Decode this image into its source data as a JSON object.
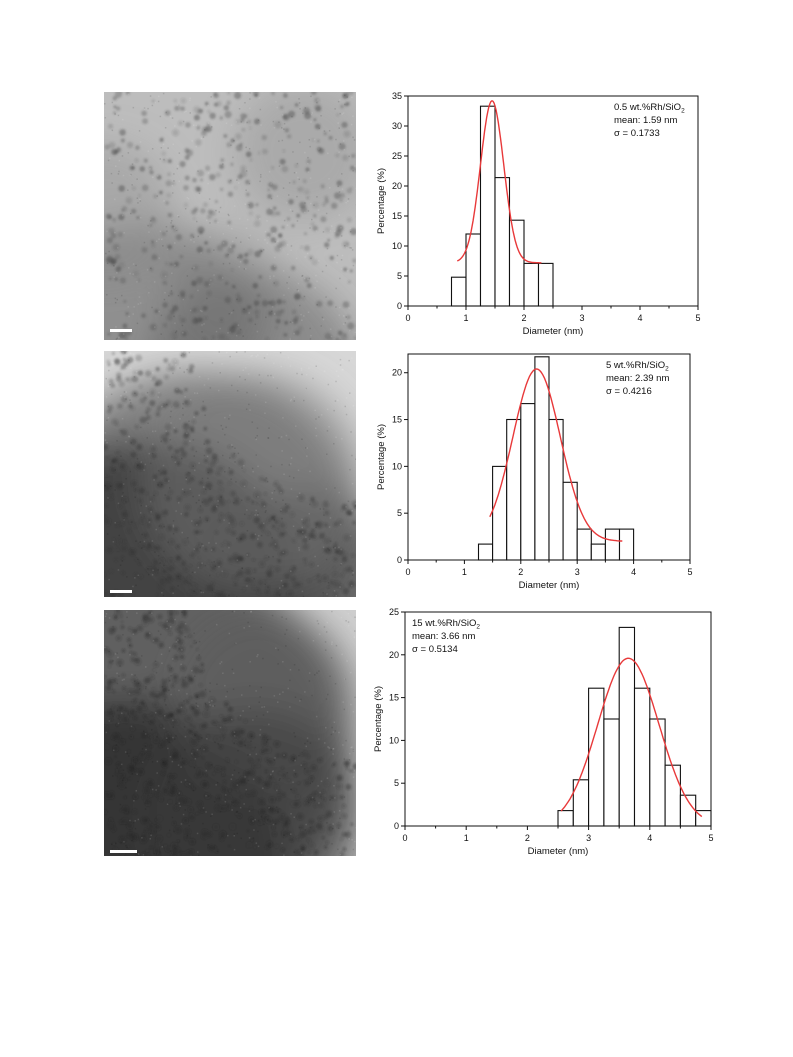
{
  "colors": {
    "fit": "#e8393a",
    "bar_edge": "#111111",
    "tem_light": "#c9c9c9",
    "tem_dark": "#3a3a3a"
  },
  "tem_images": [
    {
      "name": "tem-image-0.5wt",
      "tone": "light"
    },
    {
      "name": "tem-image-5wt",
      "tone": "medium"
    },
    {
      "name": "tem-image-15wt",
      "tone": "dark"
    }
  ],
  "chart_data": [
    {
      "type": "bar",
      "bin_width": 0.25,
      "x": [
        0.875,
        1.125,
        1.375,
        1.625,
        1.875,
        2.125,
        2.375
      ],
      "values": [
        4.8,
        12.0,
        33.3,
        21.4,
        14.3,
        7.1,
        7.1
      ],
      "fit": {
        "type": "gaussian",
        "mean": 1.45,
        "sigma": 0.2,
        "amplitude": 27.0,
        "baseline": 7.2,
        "range": [
          0.85,
          2.3
        ]
      },
      "xlabel": "Diameter (nm)",
      "ylabel": "Percentage (%)",
      "xlim": [
        0,
        5
      ],
      "ylim": [
        0,
        35
      ],
      "xticks": [
        "0",
        "1",
        "2",
        "3",
        "4",
        "5"
      ],
      "yticks": [
        "0",
        "5",
        "10",
        "15",
        "20",
        "25",
        "30",
        "35"
      ],
      "legend_position": "top-right",
      "annotation": {
        "line1": "0.5 wt.%Rh/SiO",
        "line1_sub": "2",
        "line2": "mean: 1.59 nm",
        "line3": "σ = 0.1733"
      }
    },
    {
      "type": "bar",
      "bin_width": 0.25,
      "x": [
        1.375,
        1.625,
        1.875,
        2.125,
        2.375,
        2.625,
        2.875,
        3.125,
        3.375,
        3.625,
        3.875
      ],
      "values": [
        1.7,
        10.0,
        15.0,
        16.7,
        21.7,
        15.0,
        8.3,
        3.3,
        1.7,
        3.3,
        3.3
      ],
      "fit": {
        "type": "gaussian",
        "mean": 2.28,
        "sigma": 0.42,
        "amplitude": 18.4,
        "baseline": 2.0,
        "range": [
          1.45,
          3.8
        ]
      },
      "xlabel": "Diameter (nm)",
      "ylabel": "Percentage (%)",
      "xlim": [
        0,
        5
      ],
      "ylim": [
        0,
        22
      ],
      "xticks": [
        "0",
        "1",
        "2",
        "3",
        "4",
        "5"
      ],
      "yticks": [
        "0",
        "5",
        "10",
        "15",
        "20"
      ],
      "legend_position": "top-right",
      "annotation": {
        "line1": "5 wt.%Rh/SiO",
        "line1_sub": "2",
        "line2": "mean: 2.39 nm",
        "line3": "σ = 0.4216"
      }
    },
    {
      "type": "bar",
      "bin_width": 0.25,
      "x": [
        2.625,
        2.875,
        3.125,
        3.375,
        3.625,
        3.875,
        4.125,
        4.375,
        4.625,
        4.875
      ],
      "values": [
        1.8,
        5.4,
        16.1,
        12.5,
        23.2,
        16.1,
        12.5,
        7.1,
        3.6,
        1.8
      ],
      "fit": {
        "type": "gaussian",
        "mean": 3.65,
        "sigma": 0.5,
        "amplitude": 19.6,
        "baseline": 0,
        "range": [
          2.55,
          4.85
        ]
      },
      "xlabel": "Diameter (nm)",
      "ylabel": "Percentage (%)",
      "xlim": [
        0,
        5
      ],
      "ylim": [
        0,
        25
      ],
      "xticks": [
        "0",
        "1",
        "2",
        "3",
        "4",
        "5"
      ],
      "yticks": [
        "0",
        "5",
        "10",
        "15",
        "20",
        "25"
      ],
      "legend_position": "top-left",
      "annotation": {
        "line1": "15 wt.%Rh/SiO",
        "line1_sub": "2",
        "line2": "mean: 3.66 nm",
        "line3": "σ = 0.5134"
      }
    }
  ]
}
